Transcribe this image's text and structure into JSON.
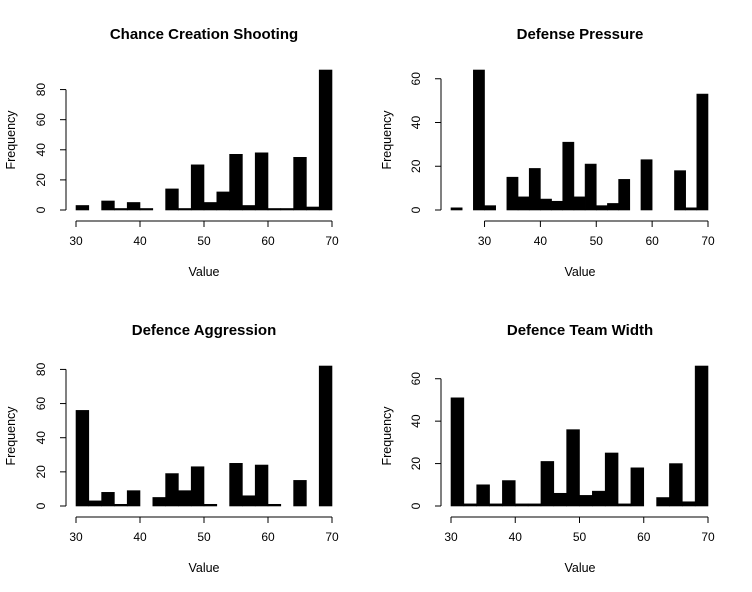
{
  "chart_data": [
    {
      "type": "bar",
      "title": "Chance Creation Shooting",
      "xlabel": "Value",
      "ylabel": "Frequency",
      "bin_start": 30,
      "bin_width": 2,
      "values": [
        3,
        0,
        6,
        1,
        5,
        1,
        0,
        14,
        1,
        30,
        5,
        12,
        37,
        3,
        38,
        1,
        1,
        35,
        2,
        93
      ],
      "xticks": [
        30,
        40,
        50,
        60,
        70
      ],
      "yticks": [
        0,
        20,
        40,
        60,
        80
      ],
      "xlim": [
        30,
        70
      ],
      "ylim": [
        0,
        93
      ],
      "color": "#000000"
    },
    {
      "type": "bar",
      "title": "Defense Pressure",
      "xlabel": "Value",
      "ylabel": "Frequency",
      "bin_start": 24,
      "bin_width": 2,
      "values": [
        1,
        0,
        64,
        2,
        0,
        15,
        6,
        19,
        5,
        4,
        31,
        6,
        21,
        2,
        3,
        14,
        0,
        23,
        0,
        0,
        18,
        1,
        53
      ],
      "xticks": [
        30,
        40,
        50,
        60,
        70
      ],
      "yticks": [
        0,
        20,
        40,
        60
      ],
      "xlim": [
        24,
        70
      ],
      "ylim": [
        0,
        64
      ],
      "color": "#000000"
    },
    {
      "type": "bar",
      "title": "Defence Aggression",
      "xlabel": "Value",
      "ylabel": "Frequency",
      "bin_start": 30,
      "bin_width": 2,
      "values": [
        56,
        3,
        8,
        1,
        9,
        0,
        5,
        19,
        9,
        23,
        1,
        0,
        25,
        6,
        24,
        1,
        0,
        15,
        0,
        82
      ],
      "xticks": [
        30,
        40,
        50,
        60,
        70
      ],
      "yticks": [
        0,
        20,
        40,
        60,
        80
      ],
      "xlim": [
        30,
        70
      ],
      "ylim": [
        0,
        82
      ],
      "color": "#000000"
    },
    {
      "type": "bar",
      "title": "Defence Team Width",
      "xlabel": "Value",
      "ylabel": "Frequency",
      "bin_start": 30,
      "bin_width": 2,
      "values": [
        51,
        1,
        10,
        1,
        12,
        1,
        1,
        21,
        6,
        36,
        5,
        7,
        25,
        1,
        18,
        0,
        4,
        20,
        2,
        66
      ],
      "xticks": [
        30,
        40,
        50,
        60,
        70
      ],
      "yticks": [
        0,
        20,
        40,
        60
      ],
      "xlim": [
        30,
        70
      ],
      "ylim": [
        0,
        66
      ],
      "color": "#000000"
    }
  ]
}
